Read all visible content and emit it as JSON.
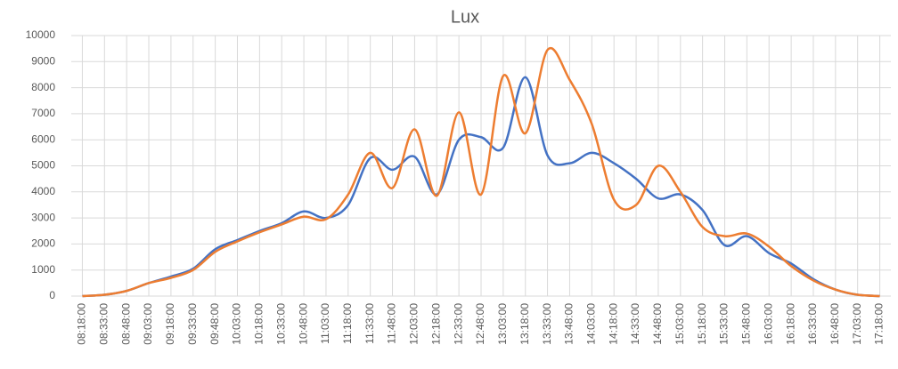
{
  "chart_data": {
    "type": "line",
    "title": "Lux",
    "categories": [
      "08:18:00",
      "08:33:00",
      "08:48:00",
      "09:03:00",
      "09:18:00",
      "09:33:00",
      "09:48:00",
      "10:03:00",
      "10:18:00",
      "10:33:00",
      "10:48:00",
      "11:03:00",
      "11:18:00",
      "11:33:00",
      "11:48:00",
      "12:03:00",
      "12:18:00",
      "12:33:00",
      "12:48:00",
      "13:03:00",
      "13:18:00",
      "13:33:00",
      "13:48:00",
      "14:03:00",
      "14:18:00",
      "14:33:00",
      "14:48:00",
      "15:03:00",
      "15:18:00",
      "15:33:00",
      "15:48:00",
      "16:03:00",
      "16:18:00",
      "16:33:00",
      "16:48:00",
      "17:03:00",
      "17:18:00"
    ],
    "series": [
      {
        "color": "#4472c4",
        "values": [
          0,
          50,
          200,
          500,
          750,
          1050,
          1800,
          2150,
          2500,
          2800,
          3250,
          3000,
          3500,
          5300,
          4850,
          5350,
          3900,
          6000,
          6100,
          5700,
          8400,
          5400,
          5100,
          5500,
          5100,
          4500,
          3750,
          3900,
          3300,
          1950,
          2300,
          1650,
          1250,
          650,
          250,
          50,
          0
        ]
      },
      {
        "color": "#ed7d31",
        "values": [
          0,
          50,
          200,
          500,
          700,
          1000,
          1700,
          2100,
          2450,
          2750,
          3050,
          2950,
          3900,
          5500,
          4150,
          6400,
          3850,
          7050,
          3900,
          8450,
          6250,
          9450,
          8300,
          6600,
          3700,
          3500,
          5000,
          4000,
          2650,
          2300,
          2400,
          1900,
          1150,
          600,
          250,
          50,
          0
        ]
      }
    ],
    "ylim": [
      0,
      10000
    ],
    "yticks": [
      0,
      1000,
      2000,
      3000,
      4000,
      5000,
      6000,
      7000,
      8000,
      9000,
      10000
    ],
    "grid": true
  }
}
